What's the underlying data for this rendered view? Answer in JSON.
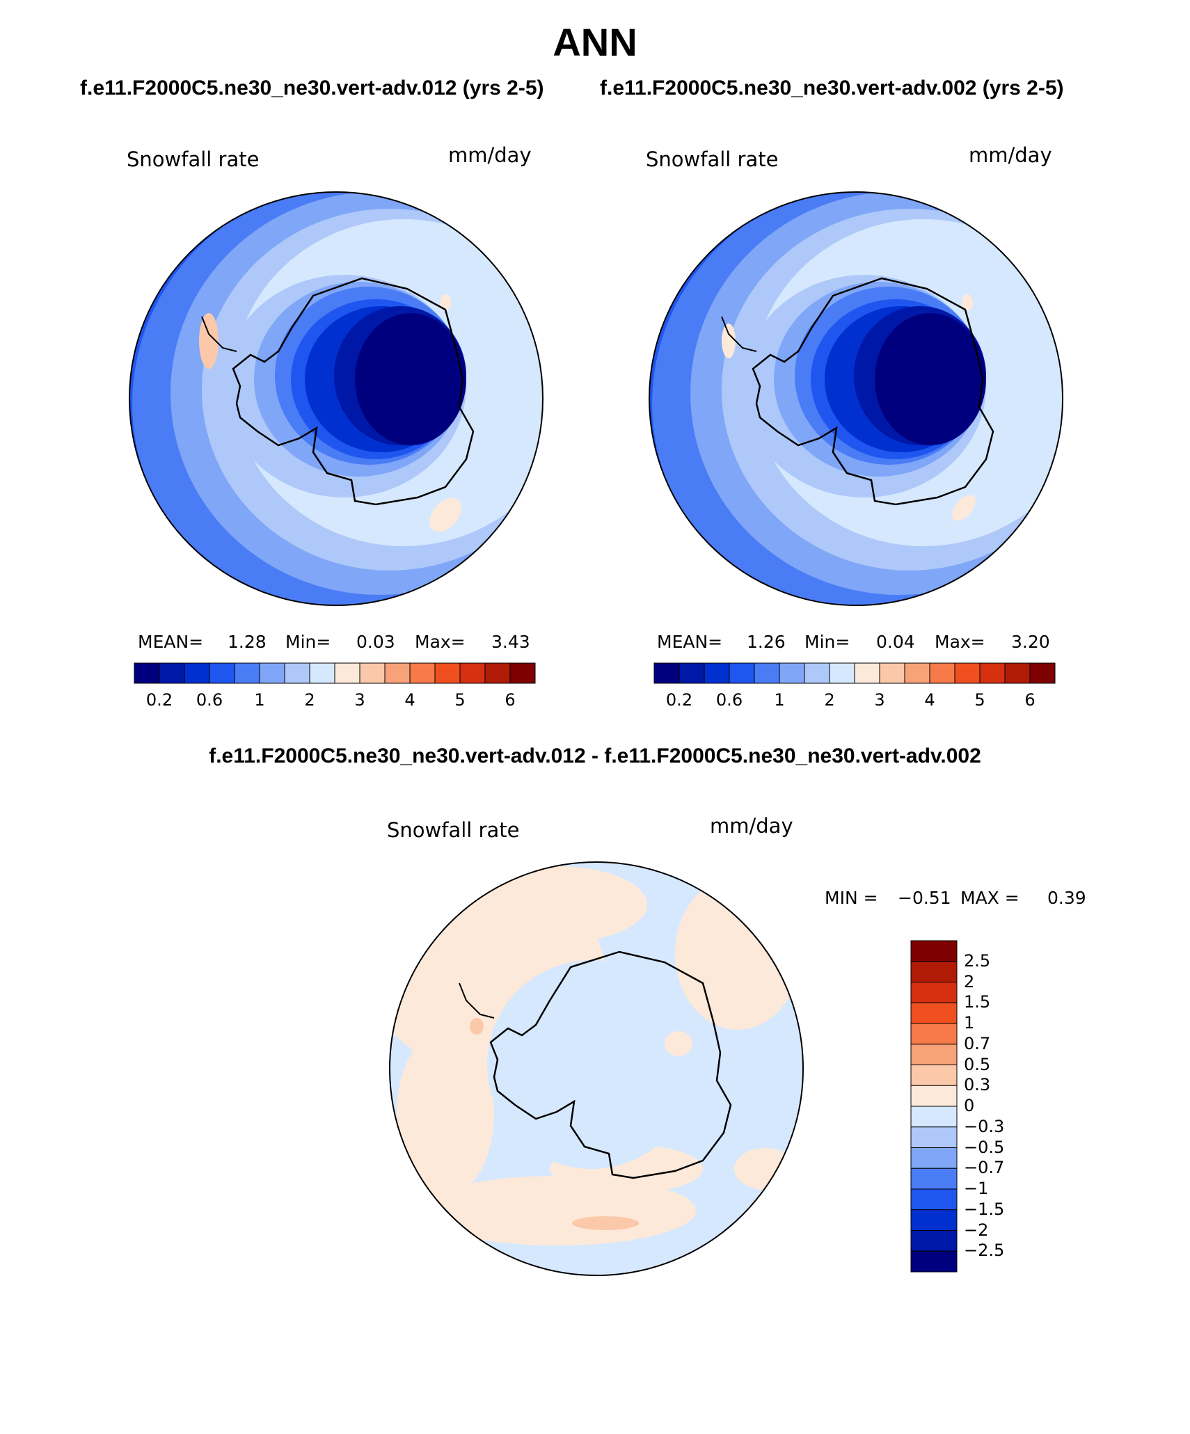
{
  "title": "ANN",
  "panels": [
    {
      "case_title": "f.e11.F2000C5.ne30_ne30.vert-adv.012 (yrs 2-5)",
      "variable": "Snowfall rate",
      "units": "mm/day",
      "stats": {
        "mean_label": "MEAN=",
        "mean": "1.28",
        "min_label": "Min=",
        "min": "0.03",
        "max_label": "Max=",
        "max": "3.43"
      }
    },
    {
      "case_title": "f.e11.F2000C5.ne30_ne30.vert-adv.002 (yrs 2-5)",
      "variable": "Snowfall rate",
      "units": "mm/day",
      "stats": {
        "mean_label": "MEAN=",
        "mean": "1.26",
        "min_label": "Min=",
        "min": "0.04",
        "max_label": "Max=",
        "max": "3.20"
      }
    }
  ],
  "difference": {
    "title": "f.e11.F2000C5.ne30_ne30.vert-adv.012 - f.e11.F2000C5.ne30_ne30.vert-adv.002",
    "variable": "Snowfall rate",
    "units": "mm/day",
    "stats": {
      "min_label": "MIN =",
      "min": "−0.51",
      "max_label": "MAX =",
      "max": "0.39"
    }
  },
  "colorbar_field": {
    "colors": [
      "#00007f",
      "#0018a8",
      "#0030d0",
      "#1f56f0",
      "#4a7cf5",
      "#7fa6f7",
      "#aec8f9",
      "#d6e8fd",
      "#fde9d9",
      "#fbc9a9",
      "#f8a27a",
      "#f77a4a",
      "#f0501f",
      "#d63010",
      "#b01b08",
      "#7f0000"
    ],
    "tick_labels": [
      "0.2",
      "0.6",
      "1",
      "2",
      "3",
      "4",
      "5",
      "6"
    ]
  },
  "colorbar_diff": {
    "colors": [
      "#7f0000",
      "#b01b08",
      "#d63010",
      "#f0501f",
      "#f77a4a",
      "#f8a27a",
      "#fbc9a9",
      "#fde9d9",
      "#d6e8fd",
      "#aec8f9",
      "#7fa6f7",
      "#4a7cf5",
      "#1f56f0",
      "#0030d0",
      "#0018a8",
      "#00007f"
    ],
    "tick_labels": [
      "2.5",
      "2",
      "1.5",
      "1",
      "0.7",
      "0.5",
      "0.3",
      "0",
      "−0.3",
      "−0.5",
      "−0.7",
      "−1",
      "−1.5",
      "−2",
      "−2.5"
    ]
  }
}
